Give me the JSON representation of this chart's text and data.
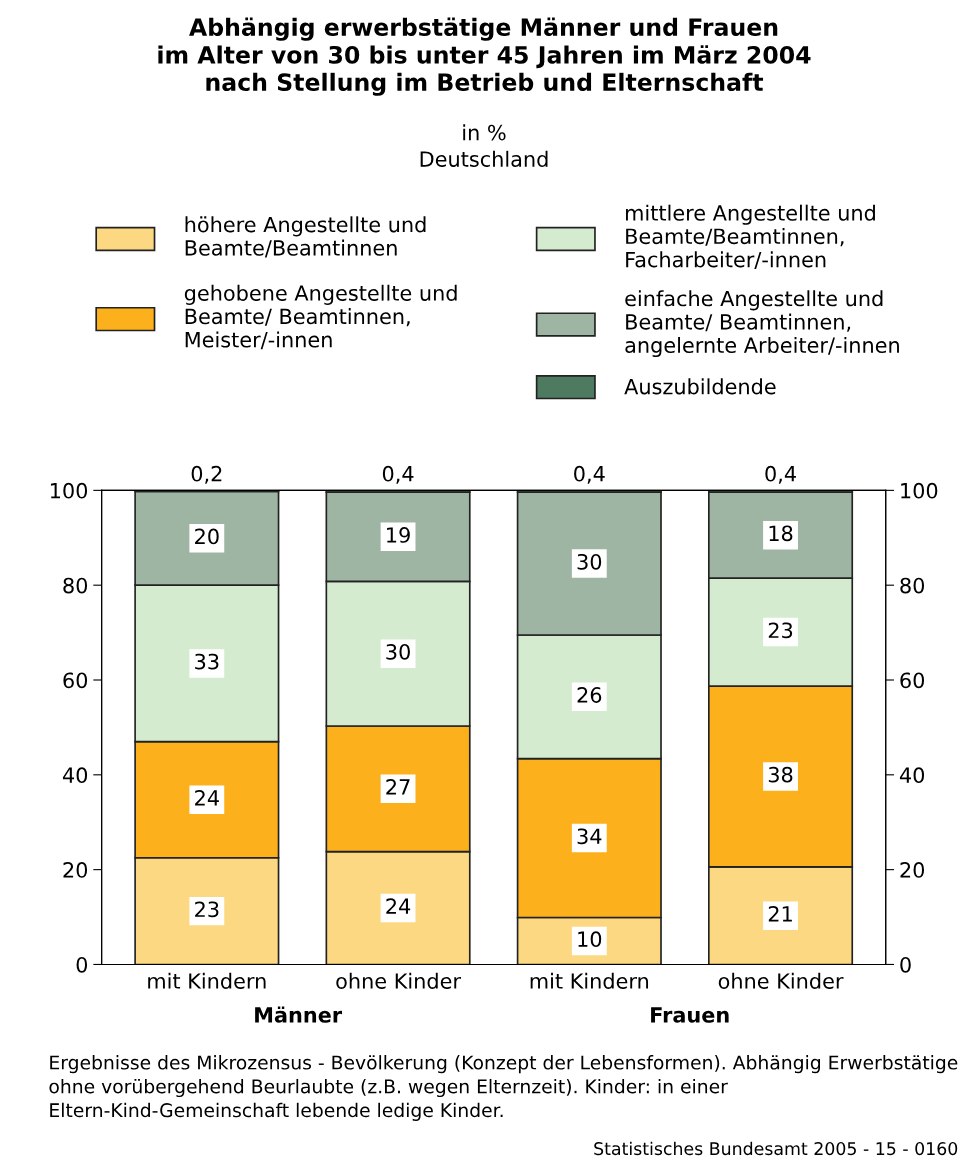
{
  "chart_data": {
    "type": "bar",
    "stacked": true,
    "title": "Abhängig erwerbstätige Männer und Frauen\nim Alter von 30 bis unter 45 Jahren im März 2004\nnach Stellung im Betrieb und Elternschaft",
    "subtitle": "in %\nDeutschland",
    "categories": [
      "mit Kindern",
      "ohne Kinder",
      "mit Kindern",
      "ohne Kinder"
    ],
    "series": [
      {
        "name": "höhere Angestellte und\nBeamte/Beamtinnen",
        "color": "#fdd882",
        "values": [
          22.5,
          23.8,
          9.9,
          20.6
        ],
        "value_labels": [
          "23",
          "24",
          "10",
          "21"
        ]
      },
      {
        "name": "gehobene Angestellte und\nBeamte/ Beamtinnen,\nMeister/-innen",
        "color": "#fbb01c",
        "values": [
          24.5,
          26.5,
          33.5,
          38.1
        ],
        "value_labels": [
          "24",
          "27",
          "34",
          "38"
        ]
      },
      {
        "name": "mittlere Angestellte und\nBeamte/Beamtinnen,\nFacharbeiter/-innen",
        "color": "#d5ebcf",
        "values": [
          33.0,
          30.5,
          26.1,
          22.8
        ],
        "value_labels": [
          "33",
          "30",
          "26",
          "23"
        ]
      },
      {
        "name": "einfache Angestellte und\nBeamte/ Beamtinnen,\nangelernte Arbeiter/-innen",
        "color": "#9eb5a4",
        "values": [
          19.8,
          18.8,
          30.1,
          18.1
        ],
        "value_labels": [
          "20",
          "19",
          "30",
          "18"
        ]
      },
      {
        "name": "Auszubildende",
        "color": "#4e7a61",
        "values": [
          0.2,
          0.4,
          0.4,
          0.4
        ],
        "value_labels": [
          "0,2",
          "0,4",
          "0,4",
          "0,4"
        ]
      }
    ],
    "ylim": [
      0,
      100
    ],
    "yticks": [
      0,
      20,
      40,
      60,
      80,
      100
    ],
    "y2lim": [
      0,
      100
    ],
    "y2ticks": [
      0,
      20,
      40,
      60,
      80,
      100
    ],
    "legend": "top",
    "grid": false,
    "annotations": [
      "Männer",
      "Frauen",
      "Ergebnisse des Mikrozensus - Bevölkerung (Konzept der Lebensformen). Abhängig Erwerbstätige ohne vorübergehend Beurlaubte (z.B. wegen Elternzeit). Kinder: in einer Eltern-Kind-Gemeinschaft lebende ledige Kinder.",
      "Statistisches Bundesamt 2005 - 15 - 0160"
    ]
  }
}
